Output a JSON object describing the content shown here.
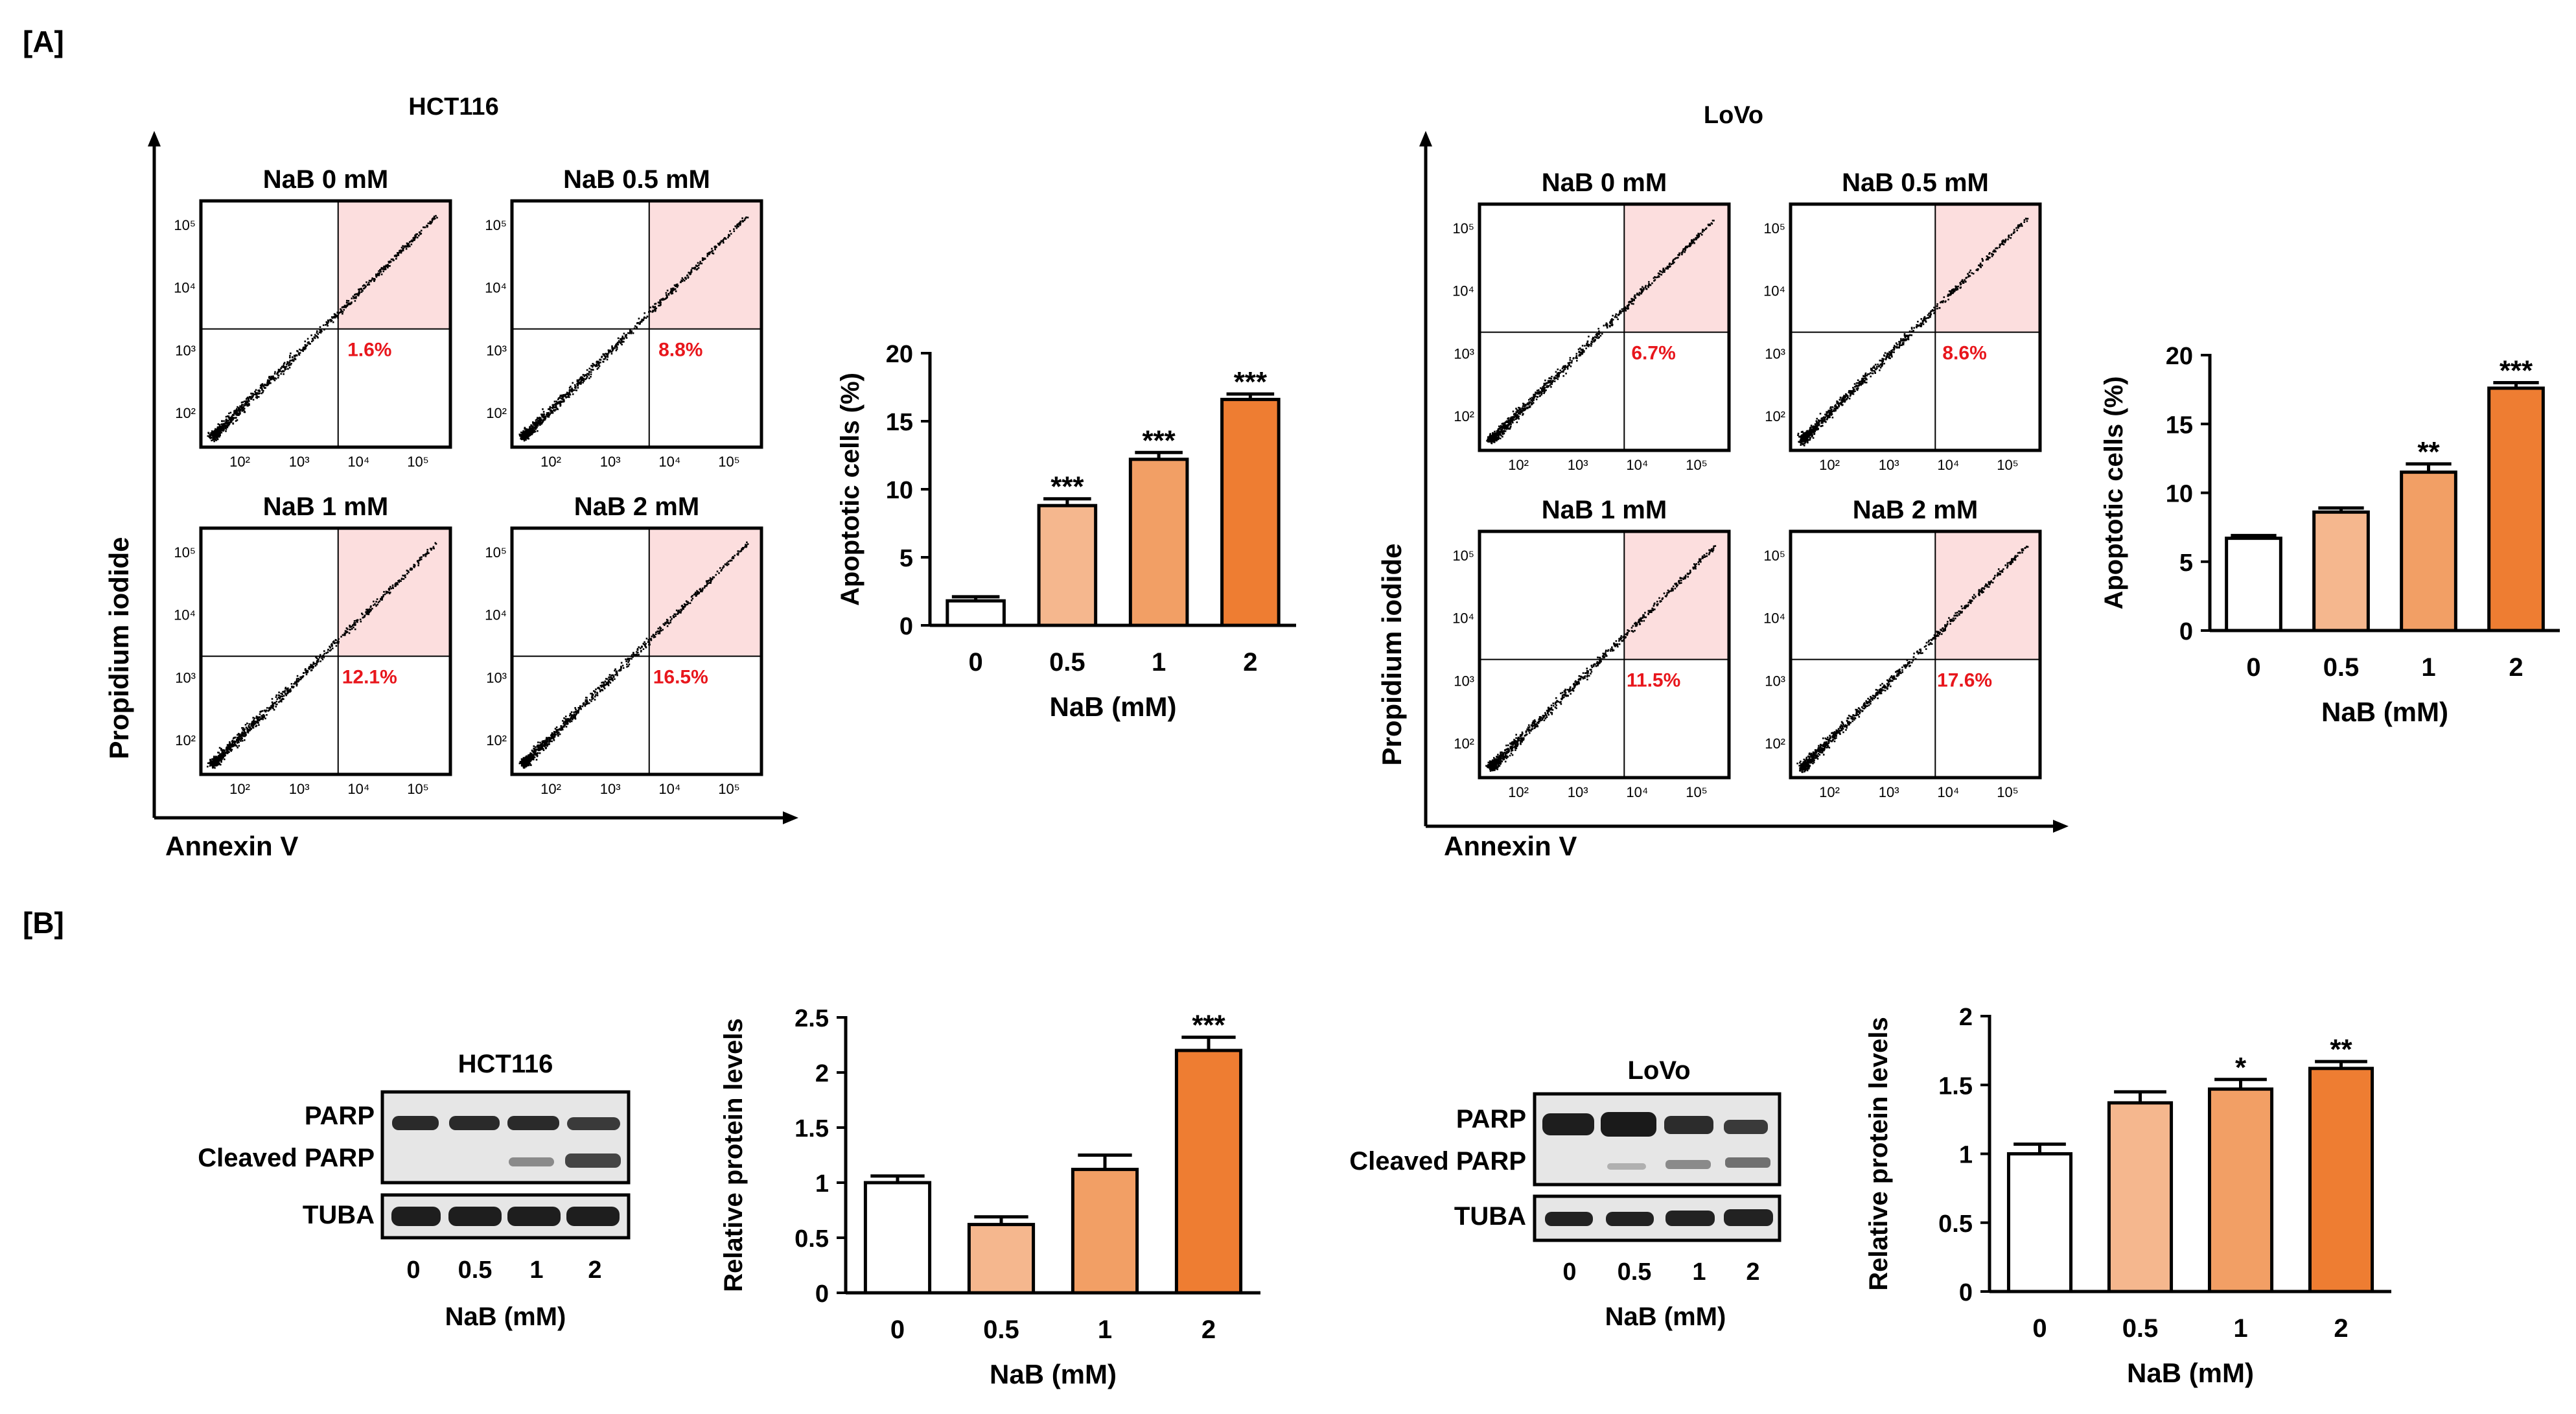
{
  "panels": {
    "A": {
      "label": "[A]",
      "groups": [
        {
          "cell_line": "HCT116",
          "flow": {
            "y_axis_label": "Propidium iodide",
            "x_axis_label": "Annexin V",
            "plots": [
              {
                "title": "NaB 0 mM",
                "percent": "1.6%"
              },
              {
                "title": "NaB 0.5 mM",
                "percent": "8.8%"
              },
              {
                "title": "NaB 1 mM",
                "percent": "12.1%"
              },
              {
                "title": "NaB 2 mM",
                "percent": "16.5%"
              }
            ],
            "y_ticks": [
              "10⁵",
              "10⁴",
              "10³",
              "10²"
            ],
            "x_ticks": [
              "10²",
              "10³",
              "10⁴",
              "10⁵"
            ]
          }
        },
        {
          "cell_line": "LoVo",
          "flow": {
            "y_axis_label": "Propidium iodide",
            "x_axis_label": "Annexin V",
            "plots": [
              {
                "title": "NaB 0 mM",
                "percent": "6.7%"
              },
              {
                "title": "NaB 0.5 mM",
                "percent": "8.6%"
              },
              {
                "title": "NaB 1 mM",
                "percent": "11.5%"
              },
              {
                "title": "NaB 2 mM",
                "percent": "17.6%"
              }
            ],
            "y_ticks": [
              "10⁵",
              "10⁴",
              "10³",
              "10²"
            ],
            "x_ticks": [
              "10²",
              "10³",
              "10⁴",
              "10⁵"
            ]
          }
        }
      ]
    },
    "B": {
      "label": "[B]",
      "blots": [
        {
          "cell_line": "HCT116",
          "rows": {
            "parp": "PARP",
            "cleaved": "Cleaved PARP",
            "tuba": "TUBA"
          },
          "lanes": [
            "0",
            "0.5",
            "1",
            "2"
          ],
          "xlabel": "NaB (mM)"
        },
        {
          "cell_line": "LoVo",
          "rows": {
            "parp": "PARP",
            "cleaved": "Cleaved PARP",
            "tuba": "TUBA"
          },
          "lanes": [
            "0",
            "0.5",
            "1",
            "2"
          ],
          "xlabel": "NaB (mM)"
        }
      ]
    }
  },
  "colors": {
    "bars": [
      "#ffffff",
      "#f5b78e",
      "#f29f65",
      "#ee7d32"
    ],
    "gate": "#fcdede",
    "percent_text": "#e8161c"
  },
  "chart_data": [
    {
      "id": "hct116-apoptosis",
      "type": "bar",
      "categories": [
        "0",
        "0.5",
        "1",
        "2"
      ],
      "values": [
        1.8,
        8.8,
        12.2,
        16.6
      ],
      "errors": [
        0.3,
        0.5,
        0.5,
        0.4
      ],
      "significance": [
        "",
        "***",
        "***",
        "***"
      ],
      "xlabel": "NaB (mM)",
      "ylabel": "Apoptotic cells (%)",
      "ylim": [
        0,
        20
      ],
      "yticks": [
        "0",
        "5",
        "10",
        "15",
        "20"
      ]
    },
    {
      "id": "lovo-apoptosis",
      "type": "bar",
      "categories": [
        "0",
        "0.5",
        "1",
        "2"
      ],
      "values": [
        6.7,
        8.6,
        11.5,
        17.6
      ],
      "errors": [
        0.2,
        0.3,
        0.6,
        0.4
      ],
      "significance": [
        "",
        "",
        "**",
        "***"
      ],
      "xlabel": "NaB (mM)",
      "ylabel": "Apoptotic cells (%)",
      "ylim": [
        0,
        20
      ],
      "yticks": [
        "0",
        "5",
        "10",
        "15",
        "20"
      ]
    },
    {
      "id": "hct116-cleaved-parp",
      "type": "bar",
      "categories": [
        "0",
        "0.5",
        "1",
        "2"
      ],
      "values": [
        1.0,
        0.62,
        1.12,
        2.2
      ],
      "errors": [
        0.06,
        0.07,
        0.13,
        0.12
      ],
      "significance": [
        "",
        "",
        "",
        "***"
      ],
      "xlabel": "NaB (mM)",
      "ylabel": "Relative protein levels",
      "ylim": [
        0,
        2.5
      ],
      "yticks": [
        "0",
        "0.5",
        "1",
        "1.5",
        "2",
        "2.5"
      ]
    },
    {
      "id": "lovo-cleaved-parp",
      "type": "bar",
      "categories": [
        "0",
        "0.5",
        "1",
        "2"
      ],
      "values": [
        1.0,
        1.37,
        1.47,
        1.62
      ],
      "errors": [
        0.07,
        0.08,
        0.07,
        0.05
      ],
      "significance": [
        "",
        "",
        "*",
        "**"
      ],
      "xlabel": "NaB (mM)",
      "ylabel": "Relative protein levels",
      "ylim": [
        0,
        2
      ],
      "yticks": [
        "0",
        "0.5",
        "1",
        "1.5",
        "2"
      ]
    }
  ]
}
